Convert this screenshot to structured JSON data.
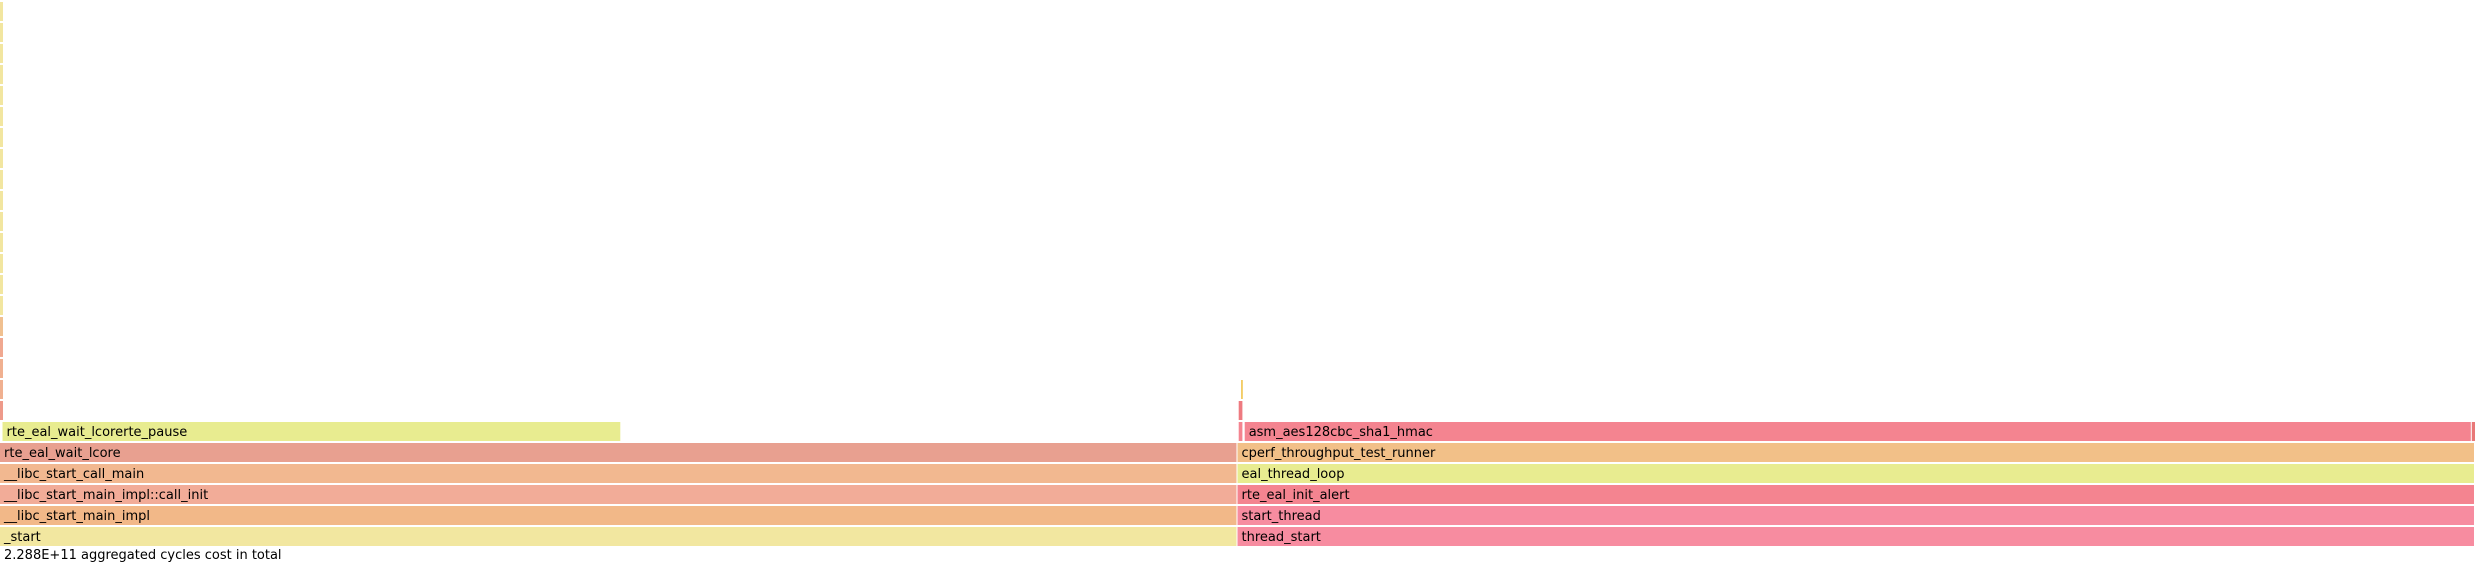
{
  "chart_data": {
    "type": "flame",
    "unit": "cycles",
    "total_label": "2.288E+11 aggregated cycles cost in total",
    "total_share": 1.0,
    "frames": [
      {
        "name": "_start",
        "depth": 0,
        "start": 0.0,
        "share": 0.5,
        "color": "#f2e7a0"
      },
      {
        "name": "__libc_start_main_impl",
        "depth": 1,
        "start": 0.0,
        "share": 0.5,
        "color": "#f2b888"
      },
      {
        "name": "__libc_start_main_impl::call_init",
        "depth": 2,
        "start": 0.0,
        "share": 0.5,
        "color": "#f2ac98"
      },
      {
        "name": "__libc_start_call_main",
        "depth": 3,
        "start": 0.0,
        "share": 0.5,
        "color": "#f2b890"
      },
      {
        "name": "rte_eal_wait_lcore",
        "depth": 4,
        "start": 0.0,
        "share": 0.5,
        "color": "#e8a090"
      },
      {
        "name": "rte_eal_wait_lcorerte_pause",
        "depth": 5,
        "start": 0.001,
        "share": 0.25,
        "color": "#e8ec90"
      },
      {
        "name": "",
        "depth": 6,
        "start": 0.0,
        "share": 0.0012,
        "color": "#ee9a8a"
      },
      {
        "name": "",
        "depth": 7,
        "start": 0.0,
        "share": 0.0012,
        "color": "#f0b090"
      },
      {
        "name": "",
        "depth": 8,
        "start": 0.0,
        "share": 0.0012,
        "color": "#f0b090"
      },
      {
        "name": "",
        "depth": 9,
        "start": 0.0,
        "share": 0.0012,
        "color": "#f0a890"
      },
      {
        "name": "",
        "depth": 10,
        "start": 0.0,
        "share": 0.0012,
        "color": "#f0c090"
      },
      {
        "name": "",
        "depth": 11,
        "start": 0.0,
        "share": 0.0012,
        "color": "#f2e6a0"
      },
      {
        "name": "",
        "depth": 12,
        "start": 0.0,
        "share": 0.0012,
        "color": "#f2e6a0"
      },
      {
        "name": "",
        "depth": 13,
        "start": 0.0,
        "share": 0.0012,
        "color": "#f2e6a0"
      },
      {
        "name": "",
        "depth": 14,
        "start": 0.0,
        "share": 0.0012,
        "color": "#f2e6a0"
      },
      {
        "name": "",
        "depth": 15,
        "start": 0.0,
        "share": 0.0012,
        "color": "#f2e6a0"
      },
      {
        "name": "",
        "depth": 16,
        "start": 0.0,
        "share": 0.0012,
        "color": "#f2e6a0"
      },
      {
        "name": "",
        "depth": 17,
        "start": 0.0,
        "share": 0.0012,
        "color": "#f2e6a0"
      },
      {
        "name": "",
        "depth": 18,
        "start": 0.0,
        "share": 0.0012,
        "color": "#f2e6a0"
      },
      {
        "name": "",
        "depth": 19,
        "start": 0.0,
        "share": 0.0012,
        "color": "#f2e6a0"
      },
      {
        "name": "",
        "depth": 20,
        "start": 0.0,
        "share": 0.0012,
        "color": "#f2e6a0"
      },
      {
        "name": "",
        "depth": 21,
        "start": 0.0,
        "share": 0.0012,
        "color": "#f2e6a0"
      },
      {
        "name": "",
        "depth": 22,
        "start": 0.0,
        "share": 0.0012,
        "color": "#f2e6a0"
      },
      {
        "name": "",
        "depth": 23,
        "start": 0.0,
        "share": 0.0012,
        "color": "#f2e6a0"
      },
      {
        "name": "",
        "depth": 24,
        "start": 0.0,
        "share": 0.0012,
        "color": "#f2e6a0"
      },
      {
        "name": "",
        "depth": 25,
        "start": 0.0,
        "share": 0.0012,
        "color": "#f2e6a0"
      },
      {
        "name": "thread_start",
        "depth": 0,
        "start": 0.5,
        "share": 0.5,
        "color": "#f78ca0"
      },
      {
        "name": "start_thread",
        "depth": 1,
        "start": 0.5,
        "share": 0.5,
        "color": "#f78ca0"
      },
      {
        "name": "rte_eal_init_alert",
        "depth": 2,
        "start": 0.5,
        "share": 0.5,
        "color": "#f48490"
      },
      {
        "name": "eal_thread_loop",
        "depth": 3,
        "start": 0.5,
        "share": 0.5,
        "color": "#e8ec90"
      },
      {
        "name": "cperf_throughput_test_runner",
        "depth": 4,
        "start": 0.5,
        "share": 0.5,
        "color": "#f2c088"
      },
      {
        "name": "asm_aes128cbc_sha1_hmac",
        "depth": 5,
        "start": 0.5029,
        "share": 0.4958,
        "color": "#f48490"
      },
      {
        "name": "",
        "depth": 5,
        "start": 0.5005,
        "share": 0.0015,
        "color": "#f48490"
      },
      {
        "name": "",
        "depth": 5,
        "start": 0.9987,
        "share": 0.0013,
        "color": "#e87878"
      },
      {
        "name": "",
        "depth": 6,
        "start": 0.5005,
        "share": 0.0015,
        "color": "#ee7a80"
      },
      {
        "name": "",
        "depth": 7,
        "start": 0.5015,
        "share": 0.0006,
        "color": "#f0c040"
      }
    ]
  }
}
